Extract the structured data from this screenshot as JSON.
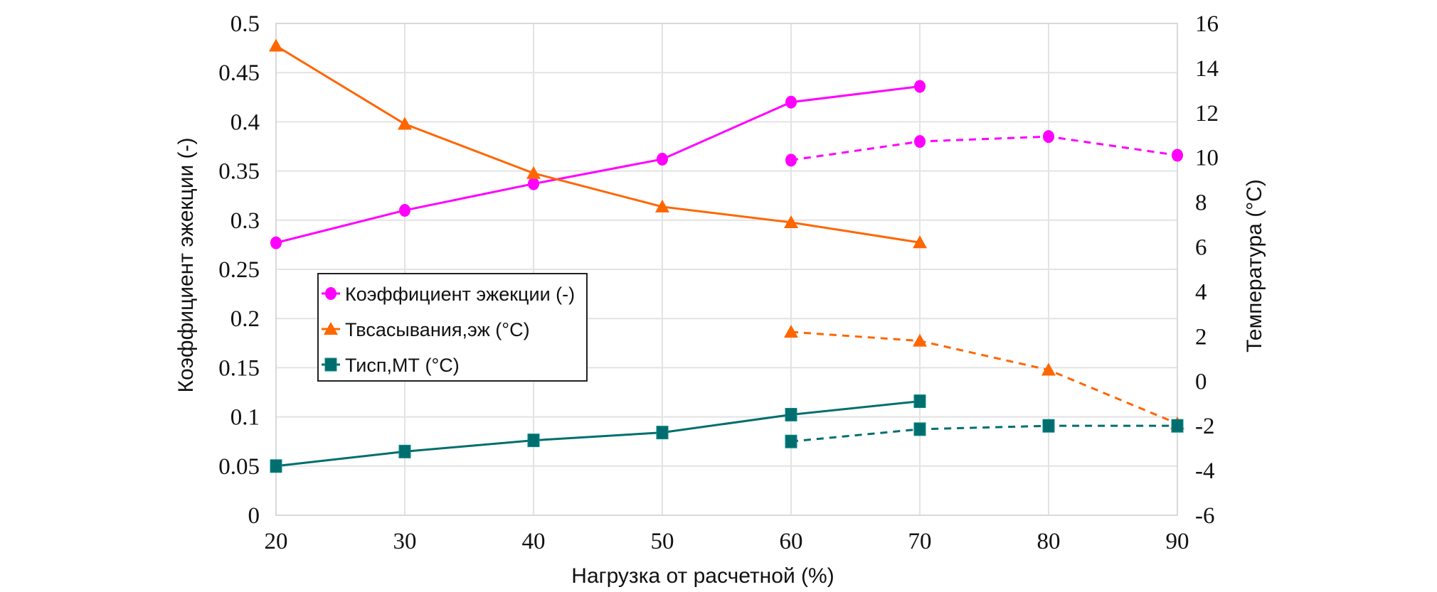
{
  "chart_data": {
    "type": "line",
    "title": "",
    "xlabel": "Нагрузка от расчетной (%)",
    "ylabel": "Коэффициент эжекции (-)",
    "y2label": "Температура (°C)",
    "xlim": [
      20,
      90
    ],
    "ylim": [
      0,
      0.5
    ],
    "y2lim": [
      -6,
      16
    ],
    "x_ticks": [
      20,
      30,
      40,
      50,
      60,
      70,
      80,
      90
    ],
    "y_ticks": [
      "0",
      "0.05",
      "0.1",
      "0.15",
      "0.2",
      "0.25",
      "0.3",
      "0.35",
      "0.4",
      "0.45",
      "0.5"
    ],
    "y_tick_values": [
      0,
      0.05,
      0.1,
      0.15,
      0.2,
      0.25,
      0.3,
      0.35,
      0.4,
      0.45,
      0.5
    ],
    "y2_ticks": [
      "-6",
      "-4",
      "-2",
      "0",
      "2",
      "4",
      "6",
      "8",
      "10",
      "12",
      "14",
      "16"
    ],
    "y2_tick_values": [
      -6,
      -4,
      -2,
      0,
      2,
      4,
      6,
      8,
      10,
      12,
      14,
      16
    ],
    "grid": true,
    "legend_position": "center-left",
    "legend": [
      {
        "label": "Коэффициент эжекции (-)",
        "color": "#ff00ff",
        "marker": "circle"
      },
      {
        "label": "Твсасывания,эж (°C)",
        "color": "#ff6600",
        "marker": "triangle"
      },
      {
        "label": "Тисп,МТ (°C)",
        "color": "#006e6e",
        "marker": "square"
      }
    ],
    "series": [
      {
        "name": "Коэффициент эжекции (-)",
        "axis": "left",
        "style": "solid",
        "color": "#ff00ff",
        "marker": "circle",
        "x": [
          20,
          30,
          40,
          50,
          60,
          70
        ],
        "values": [
          0.277,
          0.31,
          0.337,
          0.362,
          0.42,
          0.436
        ]
      },
      {
        "name": "Коэффициент эжекции (-) (пунктир)",
        "axis": "left",
        "style": "dashed",
        "color": "#ff00ff",
        "marker": "circle",
        "x": [
          60,
          70,
          80,
          90
        ],
        "values": [
          0.361,
          0.38,
          0.385,
          0.366
        ]
      },
      {
        "name": "Твсасывания,эж (°C)",
        "axis": "right",
        "style": "solid",
        "color": "#ff6600",
        "marker": "triangle",
        "x": [
          20,
          30,
          40,
          50,
          60,
          70
        ],
        "values": [
          15.0,
          11.5,
          9.3,
          7.8,
          7.1,
          6.2
        ]
      },
      {
        "name": "Твсасывания,эж (°C) (пунктир)",
        "axis": "right",
        "style": "dashed",
        "color": "#ff6600",
        "marker": "triangle",
        "x": [
          60,
          70,
          80,
          90
        ],
        "values": [
          2.2,
          1.8,
          0.5,
          -1.9
        ]
      },
      {
        "name": "Тисп,МТ (°C)",
        "axis": "right",
        "style": "solid",
        "color": "#006e6e",
        "marker": "square",
        "x": [
          20,
          30,
          40,
          50,
          60,
          70
        ],
        "values": [
          -3.8,
          -3.15,
          -2.65,
          -2.3,
          -1.5,
          -0.9
        ]
      },
      {
        "name": "Тисп,МТ (°C) (пунктир)",
        "axis": "right",
        "style": "dashed",
        "color": "#006e6e",
        "marker": "square",
        "x": [
          60,
          70,
          80,
          90
        ],
        "values": [
          -2.7,
          -2.15,
          -2.0,
          -2.0
        ]
      }
    ]
  }
}
